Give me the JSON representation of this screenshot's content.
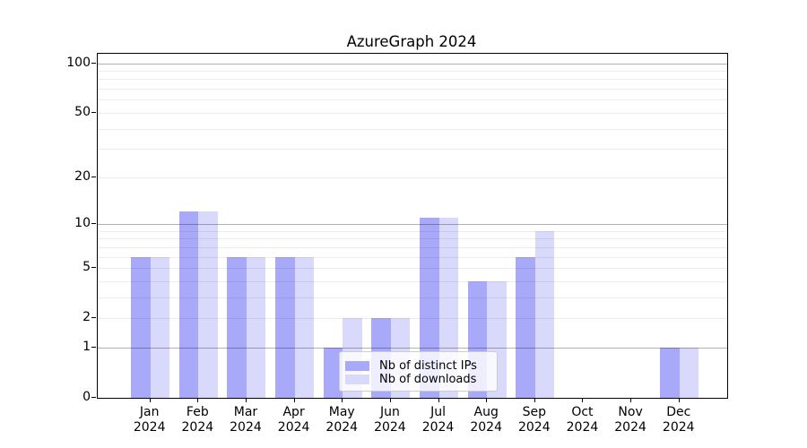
{
  "title": "AzureGraph 2024",
  "chart_data": {
    "type": "bar",
    "title": "AzureGraph 2024",
    "categories": [
      "Jan 2024",
      "Feb 2024",
      "Mar 2024",
      "Apr 2024",
      "May 2024",
      "Jun 2024",
      "Jul 2024",
      "Aug 2024",
      "Sep 2024",
      "Oct 2024",
      "Nov 2024",
      "Dec 2024"
    ],
    "series": [
      {
        "name": "Nb of distinct IPs",
        "color": "#a9a9fa",
        "values": [
          6,
          12,
          6,
          6,
          1,
          2,
          11,
          4,
          6,
          0,
          0,
          1
        ]
      },
      {
        "name": "Nb of downloads",
        "color": "#d9d9fb",
        "values": [
          6,
          12,
          6,
          6,
          2,
          2,
          11,
          4,
          9,
          0,
          0,
          1
        ]
      }
    ],
    "xlabel": "",
    "ylabel": "",
    "y_axis": {
      "scale": "log1p",
      "tick_labels": [
        "100",
        "50",
        "20",
        "10",
        "5",
        "2",
        "1",
        "0"
      ],
      "tick_values": [
        100,
        50,
        20,
        10,
        5,
        2,
        1,
        0
      ],
      "major_gridlines": [
        1,
        10,
        100
      ],
      "minor_gridlines": [
        2,
        3,
        4,
        5,
        6,
        7,
        8,
        9,
        20,
        30,
        40,
        50,
        60,
        70,
        80,
        90
      ],
      "ylim": [
        0,
        115
      ],
      "grid": true
    },
    "legend": {
      "position": "lower center",
      "entries": [
        "Nb of distinct IPs",
        "Nb of downloads"
      ]
    }
  },
  "colors": {
    "bar_distinct_ips": "#a9a9fa",
    "bar_downloads": "#d9d9fb",
    "axis": "#000000",
    "legend_border": "#cccccc",
    "text": "#000000"
  }
}
